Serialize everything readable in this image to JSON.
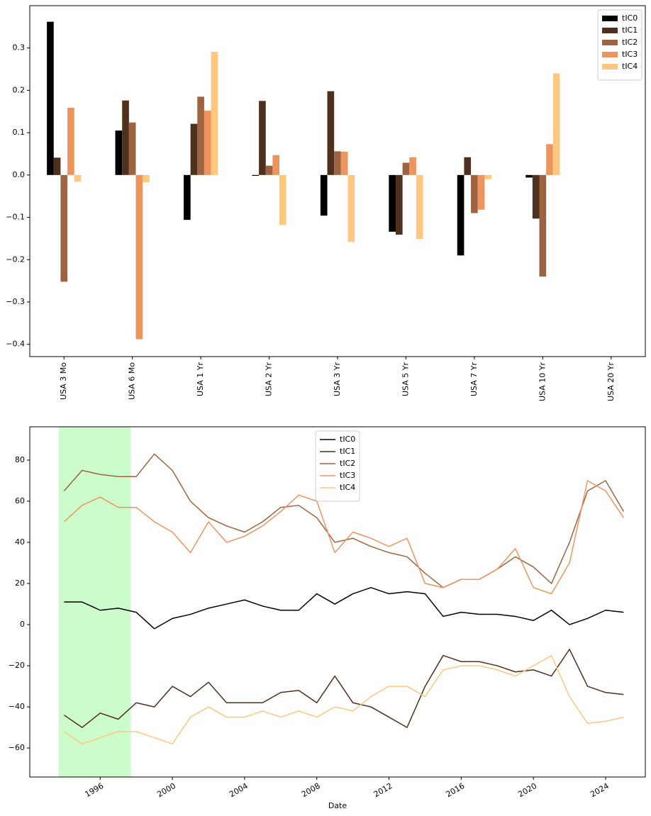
{
  "chart_data": [
    {
      "type": "bar",
      "legend": "upper right",
      "categories": [
        "USA 3 Mo",
        "USA 6 Mo",
        "USA 1 Yr",
        "USA 2 Yr",
        "USA 3 Yr",
        "USA 5 Yr",
        "USA 7 Yr",
        "USA 10 Yr",
        "USA 20 Yr"
      ],
      "series": [
        {
          "name": "tIC0",
          "color": "#000000",
          "values": [
            0.362,
            0.105,
            -0.106,
            -0.002,
            -0.096,
            -0.134,
            -0.19,
            -0.006,
            null
          ]
        },
        {
          "name": "tIC1",
          "color": "#4f2f1e",
          "values": [
            0.041,
            0.176,
            0.121,
            0.175,
            0.198,
            -0.141,
            0.042,
            -0.103,
            null
          ]
        },
        {
          "name": "tIC2",
          "color": "#9e6340",
          "values": [
            -0.252,
            0.124,
            0.185,
            0.022,
            0.056,
            0.029,
            -0.09,
            -0.24,
            null
          ]
        },
        {
          "name": "tIC3",
          "color": "#ec9560",
          "values": [
            0.159,
            -0.388,
            0.152,
            0.047,
            0.055,
            0.042,
            -0.082,
            0.073,
            null
          ]
        },
        {
          "name": "tIC4",
          "color": "#ffc77f",
          "values": [
            -0.016,
            -0.017,
            0.291,
            -0.118,
            -0.158,
            -0.151,
            -0.01,
            0.24,
            null
          ]
        }
      ],
      "ylim": [
        -0.429,
        0.4
      ],
      "yticks": [
        {
          "value": -0.4,
          "label": "−0.4"
        },
        {
          "value": -0.3,
          "label": "−0.3"
        },
        {
          "value": -0.2,
          "label": "−0.2"
        },
        {
          "value": -0.1,
          "label": "−0.1"
        },
        {
          "value": 0,
          "label": "0.0"
        },
        {
          "value": 0.1,
          "label": "0.1"
        },
        {
          "value": 0.2,
          "label": "0.2"
        },
        {
          "value": 0.3,
          "label": "0.3"
        }
      ]
    },
    {
      "type": "line",
      "legend": "upper center",
      "x_label": "Date",
      "x": [
        1994,
        1995,
        1996,
        1997,
        1998,
        1999,
        2000,
        2001,
        2002,
        2003,
        2004,
        2005,
        2006,
        2007,
        2008,
        2009,
        2010,
        2011,
        2012,
        2013,
        2014,
        2015,
        2016,
        2017,
        2018,
        2019,
        2020,
        2021,
        2022,
        2023,
        2024,
        2025
      ],
      "series": [
        {
          "name": "tIC0",
          "color": "#000000",
          "values": [
            11,
            11,
            7,
            8,
            6,
            -2,
            3,
            5,
            8,
            10,
            12,
            9,
            7,
            7,
            15,
            10,
            15,
            18,
            15,
            16,
            15,
            4,
            6,
            5,
            5,
            4,
            2,
            7,
            0,
            3,
            7,
            6
          ]
        },
        {
          "name": "tIC1",
          "color": "#4f2f1e",
          "values": [
            -44,
            -50,
            -43,
            -46,
            -38,
            -40,
            -30,
            -35,
            -28,
            -38,
            -38,
            -38,
            -33,
            -32,
            -38,
            -25,
            -38,
            -40,
            -45,
            -50,
            -30,
            -15,
            -18,
            -18,
            -20,
            -23,
            -22,
            -25,
            -12,
            -30,
            -33,
            -34
          ]
        },
        {
          "name": "tIC2",
          "color": "#9e6340",
          "values": [
            65,
            75,
            73,
            72,
            72,
            83,
            75,
            60,
            52,
            48,
            45,
            50,
            57,
            58,
            52,
            40,
            42,
            38,
            35,
            33,
            25,
            18,
            22,
            22,
            27,
            33,
            28,
            20,
            40,
            65,
            70,
            55
          ]
        },
        {
          "name": "tIC3",
          "color": "#ec9560",
          "values": [
            50,
            58,
            62,
            57,
            57,
            50,
            45,
            35,
            50,
            40,
            43,
            48,
            55,
            63,
            60,
            35,
            45,
            42,
            38,
            42,
            20,
            18,
            22,
            22,
            27,
            37,
            18,
            15,
            30,
            70,
            65,
            52
          ]
        },
        {
          "name": "tIC4",
          "color": "#ffc77f",
          "values": [
            -52,
            -58,
            -55,
            -52,
            -52,
            -55,
            -58,
            -45,
            -40,
            -45,
            -45,
            -42,
            -45,
            -42,
            -45,
            -40,
            -42,
            -35,
            -30,
            -30,
            -35,
            -22,
            -20,
            -20,
            -22,
            -25,
            -20,
            -15,
            -35,
            -48,
            -47,
            -45
          ]
        }
      ],
      "span": {
        "start": 1993.7,
        "end": 1997.7,
        "color": "#ccfccb"
      },
      "xlim": [
        1992.1,
        2026.2
      ],
      "xticks": [
        1996,
        2000,
        2004,
        2008,
        2012,
        2016,
        2020,
        2024
      ],
      "ylim": [
        -74.1,
        96.2
      ],
      "yticks": [
        {
          "value": -60,
          "label": "−60"
        },
        {
          "value": -40,
          "label": "−40"
        },
        {
          "value": -20,
          "label": "−20"
        },
        0,
        20,
        40,
        60,
        80
      ]
    }
  ]
}
